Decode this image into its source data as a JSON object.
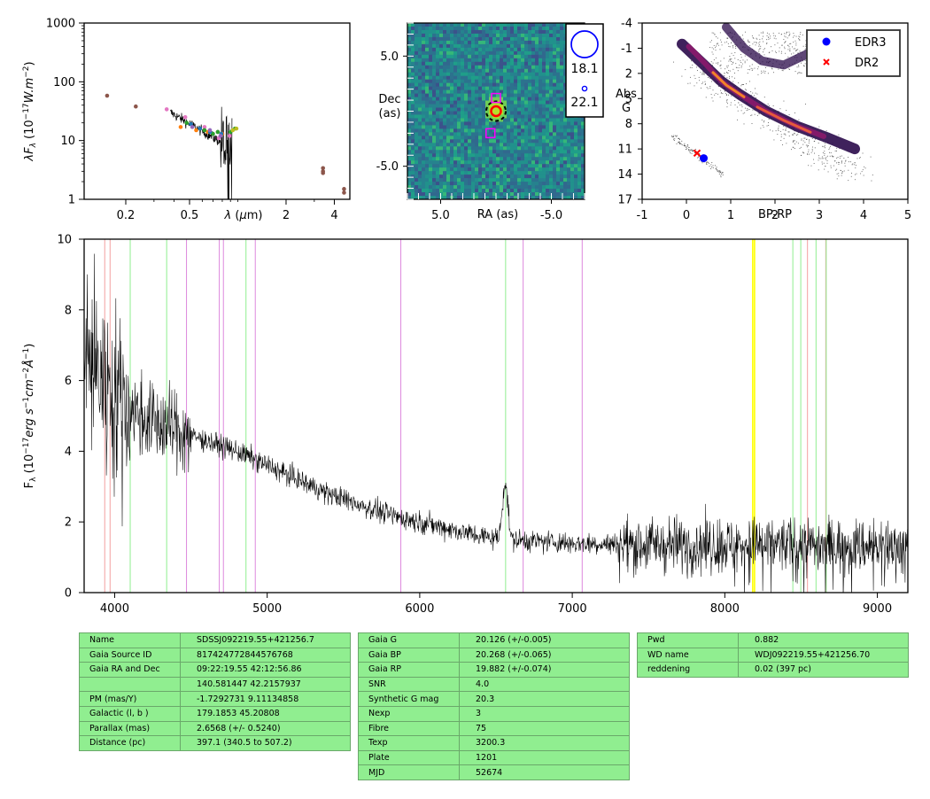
{
  "colors": {
    "table_bg": "#90ee90",
    "edr3": "#0000ff",
    "dr2": "#ff0000",
    "circle_mag": "#0000ff",
    "magenta": "#ff00ff",
    "line_pink": "#f4a0a0",
    "line_green": "#90ee90",
    "line_violet": "#dd88dd",
    "line_yellow": "#ffff00"
  },
  "chart_data": [
    {
      "type": "scatter",
      "panel": "sed",
      "ylabel": "λF_λ (10^-17 W.m^-2)",
      "xlabel": "λ (μm)",
      "xscale": "log",
      "yscale": "log",
      "xlim": [
        0.11,
        5.0
      ],
      "ylim": [
        1,
        1000
      ],
      "xticks": [
        {
          "v": 0.2,
          "label": "0.2"
        },
        {
          "v": 0.5,
          "label": "0.5"
        },
        {
          "v": 2,
          "label": "2"
        },
        {
          "v": 4,
          "label": "4"
        }
      ],
      "yticks": [
        {
          "v": 1,
          "label": "1"
        },
        {
          "v": 10,
          "label": "10"
        },
        {
          "v": 100,
          "label": "100"
        },
        {
          "v": 1000,
          "label": "1000"
        }
      ],
      "series": [
        {
          "color": "#8c564b",
          "points": [
            [
              0.153,
              58
            ],
            [
              0.231,
              38
            ],
            [
              3.4,
              3.4
            ],
            [
              3.4,
              3.0
            ],
            [
              3.4,
              2.8
            ],
            [
              4.6,
              1.5
            ],
            [
              4.6,
              1.3
            ]
          ]
        },
        {
          "color": "#e377c2",
          "points": [
            [
              0.36,
              34
            ],
            [
              0.47,
              25
            ],
            [
              0.62,
              17
            ],
            [
              0.75,
              14
            ],
            [
              0.89,
              12
            ],
            [
              0.76,
              11
            ]
          ]
        },
        {
          "color": "#ff7f0e",
          "points": [
            [
              0.44,
              17
            ],
            [
              0.55,
              15
            ],
            [
              0.65,
              14
            ],
            [
              0.8,
              13
            ]
          ]
        },
        {
          "color": "#2ca02c",
          "points": [
            [
              0.48,
              20
            ],
            [
              0.62,
              15
            ],
            [
              0.7,
              13
            ],
            [
              0.75,
              14
            ],
            [
              0.9,
              14
            ],
            [
              0.96,
              16
            ]
          ]
        },
        {
          "color": "#bcbd22",
          "points": [
            [
              0.98,
              16
            ],
            [
              0.93,
              15
            ]
          ]
        },
        {
          "color": "#1f77b4",
          "points": [
            [
              0.51,
              19
            ],
            [
              0.58,
              16
            ],
            [
              0.67,
              14
            ],
            [
              0.79,
              13
            ]
          ]
        },
        {
          "color": "#9467bd",
          "points": [
            [
              0.52,
              17
            ],
            [
              0.67,
              15
            ],
            [
              0.78,
              12
            ]
          ]
        }
      ],
      "spectrum_range": [
        0.38,
        0.92
      ]
    },
    {
      "type": "heatmap",
      "panel": "image",
      "xlabel": "RA (as)",
      "ylabel": "Dec\n(as)",
      "xlim": [
        8,
        -8
      ],
      "ylim": [
        -8,
        8
      ],
      "xticks": [
        {
          "v": 5,
          "label": "5.0"
        },
        {
          "v": -5,
          "label": "-5.0"
        }
      ],
      "yticks": [
        {
          "v": 5,
          "label": "5.0"
        },
        {
          "v": -5,
          "label": "-5.0"
        }
      ],
      "legend": [
        {
          "label": "18.1"
        },
        {
          "label": "22.1"
        }
      ],
      "markers": {
        "circle": [
          0,
          0
        ],
        "squares": [
          [
            0,
            1.2
          ],
          [
            0.5,
            -2.0
          ]
        ],
        "target": [
          0,
          0
        ]
      }
    },
    {
      "type": "scatter",
      "panel": "hrd",
      "xlabel": "BP-RP",
      "ylabel": "Abs\nG",
      "xlim": [
        -1,
        5
      ],
      "ylim": [
        17,
        -4
      ],
      "xticks": [
        {
          "v": -1,
          "label": "-1"
        },
        {
          "v": 0,
          "label": "0"
        },
        {
          "v": 1,
          "label": "1"
        },
        {
          "v": 2,
          "label": "2"
        },
        {
          "v": 3,
          "label": "3"
        },
        {
          "v": 4,
          "label": "4"
        },
        {
          "v": 5,
          "label": "5"
        }
      ],
      "yticks": [
        {
          "v": -4,
          "label": "-4"
        },
        {
          "v": -1,
          "label": "-1"
        },
        {
          "v": 2,
          "label": "2"
        },
        {
          "v": 5,
          "label": "5"
        },
        {
          "v": 8,
          "label": "8"
        },
        {
          "v": 11,
          "label": "11"
        },
        {
          "v": 14,
          "label": "14"
        },
        {
          "v": 17,
          "label": "17"
        }
      ],
      "legend": [
        {
          "name": "EDR3",
          "marker": "circle"
        },
        {
          "name": "DR2",
          "marker": "x"
        }
      ],
      "points": {
        "EDR3": [
          0.39,
          12.1
        ],
        "DR2": [
          0.24,
          11.5
        ]
      }
    },
    {
      "type": "line",
      "panel": "spectrum",
      "ylabel": "F_λ (10^-17 erg s^-1 cm^-2 Å^-1)",
      "xlim": [
        3800,
        9200
      ],
      "ylim": [
        0,
        10
      ],
      "xticks": [
        {
          "v": 4000,
          "label": "4000"
        },
        {
          "v": 5000,
          "label": "5000"
        },
        {
          "v": 6000,
          "label": "6000"
        },
        {
          "v": 7000,
          "label": "7000"
        },
        {
          "v": 8000,
          "label": "8000"
        },
        {
          "v": 9000,
          "label": "9000"
        }
      ],
      "yticks": [
        {
          "v": 0,
          "label": "0"
        },
        {
          "v": 2,
          "label": "2"
        },
        {
          "v": 4,
          "label": "4"
        },
        {
          "v": 6,
          "label": "6"
        },
        {
          "v": 8,
          "label": "8"
        },
        {
          "v": 10,
          "label": "10"
        }
      ],
      "trend": [
        [
          3800,
          6.8
        ],
        [
          3900,
          6.2
        ],
        [
          4000,
          5.6
        ],
        [
          4100,
          5.2
        ],
        [
          4200,
          4.9
        ],
        [
          4400,
          4.6
        ],
        [
          4600,
          4.3
        ],
        [
          4800,
          4.0
        ],
        [
          5000,
          3.6
        ],
        [
          5200,
          3.2
        ],
        [
          5400,
          2.8
        ],
        [
          5600,
          2.5
        ],
        [
          5800,
          2.2
        ],
        [
          6000,
          2.0
        ],
        [
          6200,
          1.8
        ],
        [
          6400,
          1.6
        ],
        [
          6600,
          1.5
        ],
        [
          6800,
          1.45
        ],
        [
          7000,
          1.4
        ],
        [
          7500,
          1.35
        ],
        [
          8000,
          1.35
        ],
        [
          8500,
          1.35
        ],
        [
          9200,
          1.3
        ]
      ],
      "lines": [
        {
          "x": 3935,
          "color": "pink"
        },
        {
          "x": 3970,
          "color": "pink"
        },
        {
          "x": 4102,
          "color": "green"
        },
        {
          "x": 4341,
          "color": "green"
        },
        {
          "x": 4471,
          "color": "violet"
        },
        {
          "x": 4686,
          "color": "violet"
        },
        {
          "x": 4713,
          "color": "violet"
        },
        {
          "x": 4861,
          "color": "green"
        },
        {
          "x": 4922,
          "color": "violet"
        },
        {
          "x": 5876,
          "color": "violet"
        },
        {
          "x": 6563,
          "color": "green"
        },
        {
          "x": 6678,
          "color": "violet"
        },
        {
          "x": 7065,
          "color": "violet"
        },
        {
          "x": 8183,
          "color": "yellow"
        },
        {
          "x": 8195,
          "color": "yellow"
        },
        {
          "x": 8446,
          "color": "green"
        },
        {
          "x": 8498,
          "color": "green"
        },
        {
          "x": 8542,
          "color": "pink"
        },
        {
          "x": 8598,
          "color": "green"
        },
        {
          "x": 8662,
          "color": "pink"
        },
        {
          "x": 8665,
          "color": "green"
        }
      ]
    }
  ],
  "tables": {
    "t1": [
      {
        "k": "Name",
        "v": "SDSSJ092219.55+421256.7"
      },
      {
        "k": "Gaia Source ID",
        "v": "817424772844576768"
      },
      {
        "k": "Gaia RA and Dec",
        "v": "09:22:19.55    42:12:56.86"
      },
      {
        "k": "",
        "v": "140.581447    42.2157937"
      },
      {
        "k": "PM (mas/Y)",
        "v": "-1.7292731    9.11134858"
      },
      {
        "k": "Galactic (l, b )",
        "v": "179.1853    45.20808"
      },
      {
        "k": "Parallax (mas)",
        "v": "2.6568 (+/- 0.5240)"
      },
      {
        "k": "Distance (pc)",
        "v": "397.1 (340.5 to 507.2)"
      }
    ],
    "t2": [
      {
        "k": "Gaia G",
        "v": "20.126 (+/-0.005)"
      },
      {
        "k": "Gaia BP",
        "v": "20.268 (+/-0.065)"
      },
      {
        "k": "Gaia RP",
        "v": "19.882 (+/-0.074)"
      },
      {
        "k": "SNR",
        "v": "4.0"
      },
      {
        "k": "Synthetic G mag",
        "v": "20.3"
      },
      {
        "k": "Nexp",
        "v": "3"
      },
      {
        "k": "Fibre",
        "v": "75"
      },
      {
        "k": "Texp",
        "v": "3200.3"
      },
      {
        "k": "Plate",
        "v": "1201"
      },
      {
        "k": "MJD",
        "v": "52674"
      }
    ],
    "t3": [
      {
        "k": "Pwd",
        "v": "0.882"
      },
      {
        "k": "WD name",
        "v": "WDJ092219.55+421256.70"
      },
      {
        "k": "reddening",
        "v": "0.02 (397 pc)"
      }
    ]
  }
}
